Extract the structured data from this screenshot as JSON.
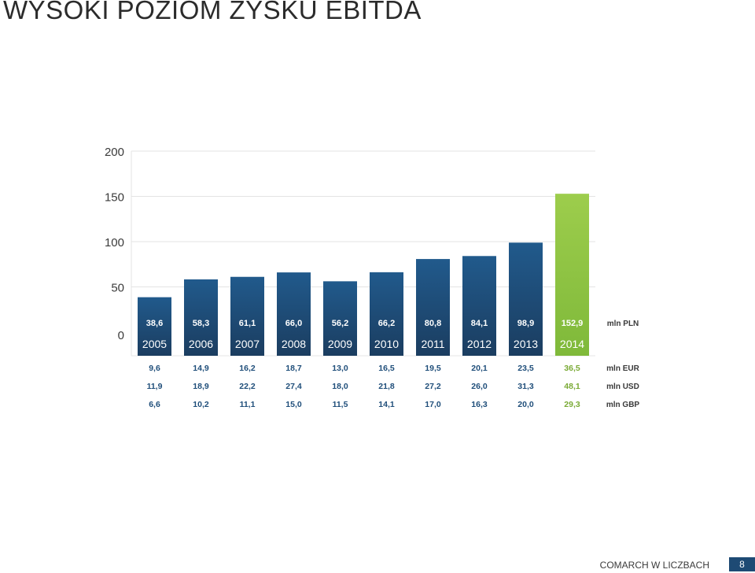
{
  "title": "WYSOKI POZIOM ZYSKU EBITDA",
  "footer": {
    "text": "COMARCH W LICZBACH",
    "page": "8"
  },
  "colors": {
    "bar": "#1f4e7a",
    "bar_highlight": "#8cc63f",
    "value_text": "#1f4e7a",
    "highlight_text": "#7aaa35"
  },
  "chart_data": {
    "type": "bar",
    "categories": [
      "2005",
      "2006",
      "2007",
      "2008",
      "2009",
      "2010",
      "2011",
      "2012",
      "2013",
      "2014"
    ],
    "values": [
      38.6,
      58.3,
      61.1,
      66.0,
      56.2,
      66.2,
      80.8,
      84.1,
      98.9,
      152.9
    ],
    "value_labels": [
      "38,6",
      "58,3",
      "61,1",
      "66,0",
      "56,2",
      "66,2",
      "80,8",
      "84,1",
      "98,9",
      "152,9"
    ],
    "highlight_index": 9,
    "unit_label": "mln PLN",
    "ylim": [
      0,
      200
    ],
    "yticks": [
      0,
      50,
      100,
      150,
      200
    ],
    "grid": true,
    "currency_rows": [
      {
        "unit": "mln EUR",
        "values": [
          "9,6",
          "14,9",
          "16,2",
          "18,7",
          "13,0",
          "16,5",
          "19,5",
          "20,1",
          "23,5",
          "36,5"
        ]
      },
      {
        "unit": "mln USD",
        "values": [
          "11,9",
          "18,9",
          "22,2",
          "27,4",
          "18,0",
          "21,8",
          "27,2",
          "26,0",
          "31,3",
          "48,1"
        ]
      },
      {
        "unit": "mln GBP",
        "values": [
          "6,6",
          "10,2",
          "11,1",
          "15,0",
          "11,5",
          "14,1",
          "17,0",
          "16,3",
          "20,0",
          "29,3"
        ]
      }
    ]
  }
}
